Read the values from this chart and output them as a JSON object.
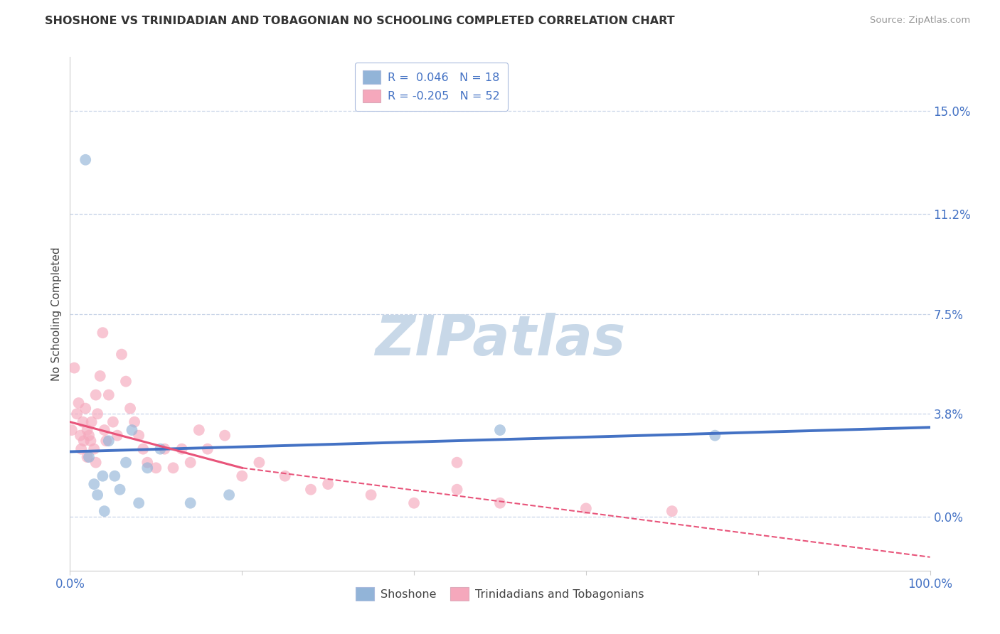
{
  "title": "SHOSHONE VS TRINIDADIAN AND TOBAGONIAN NO SCHOOLING COMPLETED CORRELATION CHART",
  "source": "Source: ZipAtlas.com",
  "ylabel": "No Schooling Completed",
  "legend_blue_r": "R =  0.046",
  "legend_blue_n": "N = 18",
  "legend_pink_r": "R = -0.205",
  "legend_pink_n": "N = 52",
  "legend_label_blue": "Shoshone",
  "legend_label_pink": "Trinidadians and Tobagonians",
  "ytick_values": [
    0.0,
    3.8,
    7.5,
    11.2,
    15.0
  ],
  "xlim": [
    0.0,
    100.0
  ],
  "ylim": [
    -2.0,
    17.0
  ],
  "blue_scatter_color": "#92b4d8",
  "pink_scatter_color": "#f5a8bc",
  "blue_line_color": "#4472c4",
  "pink_line_color": "#e8547a",
  "background_color": "#ffffff",
  "grid_color": "#c8d4e8",
  "watermark_color": "#c8d8e8",
  "blue_scatter_x": [
    1.8,
    2.2,
    2.8,
    3.2,
    3.8,
    4.5,
    5.2,
    5.8,
    6.5,
    7.2,
    8.0,
    9.0,
    10.5,
    14.0,
    18.5,
    50.0,
    75.0,
    4.0
  ],
  "blue_scatter_y": [
    13.2,
    2.2,
    1.2,
    0.8,
    1.5,
    2.8,
    1.5,
    1.0,
    2.0,
    3.2,
    0.5,
    1.8,
    2.5,
    0.5,
    0.8,
    3.2,
    3.0,
    0.2
  ],
  "pink_scatter_x": [
    0.2,
    0.5,
    0.8,
    1.0,
    1.2,
    1.3,
    1.5,
    1.6,
    1.8,
    2.0,
    2.0,
    2.2,
    2.4,
    2.5,
    2.8,
    3.0,
    3.0,
    3.2,
    3.5,
    3.8,
    4.0,
    4.2,
    4.5,
    5.0,
    5.5,
    6.0,
    6.5,
    7.0,
    7.5,
    8.0,
    8.5,
    9.0,
    10.0,
    11.0,
    12.0,
    13.0,
    14.0,
    15.0,
    16.0,
    18.0,
    20.0,
    22.0,
    25.0,
    28.0,
    30.0,
    35.0,
    40.0,
    45.0,
    50.0,
    60.0,
    70.0,
    45.0
  ],
  "pink_scatter_y": [
    3.2,
    5.5,
    3.8,
    4.2,
    3.0,
    2.5,
    3.5,
    2.8,
    4.0,
    3.2,
    2.2,
    3.0,
    2.8,
    3.5,
    2.5,
    2.0,
    4.5,
    3.8,
    5.2,
    6.8,
    3.2,
    2.8,
    4.5,
    3.5,
    3.0,
    6.0,
    5.0,
    4.0,
    3.5,
    3.0,
    2.5,
    2.0,
    1.8,
    2.5,
    1.8,
    2.5,
    2.0,
    3.2,
    2.5,
    3.0,
    1.5,
    2.0,
    1.5,
    1.0,
    1.2,
    0.8,
    0.5,
    1.0,
    0.5,
    0.3,
    0.2,
    2.0
  ],
  "xtick_positions": [
    0,
    20,
    40,
    60,
    80,
    100
  ],
  "blue_regr_x0": 0.0,
  "blue_regr_y0": 2.4,
  "blue_regr_x1": 100.0,
  "blue_regr_y1": 3.3,
  "pink_regr_solid_x0": 0.0,
  "pink_regr_solid_y0": 3.5,
  "pink_regr_solid_x1": 20.0,
  "pink_regr_solid_y1": 1.8,
  "pink_regr_dash_x0": 20.0,
  "pink_regr_dash_y0": 1.8,
  "pink_regr_dash_x1": 100.0,
  "pink_regr_dash_y1": -1.5
}
